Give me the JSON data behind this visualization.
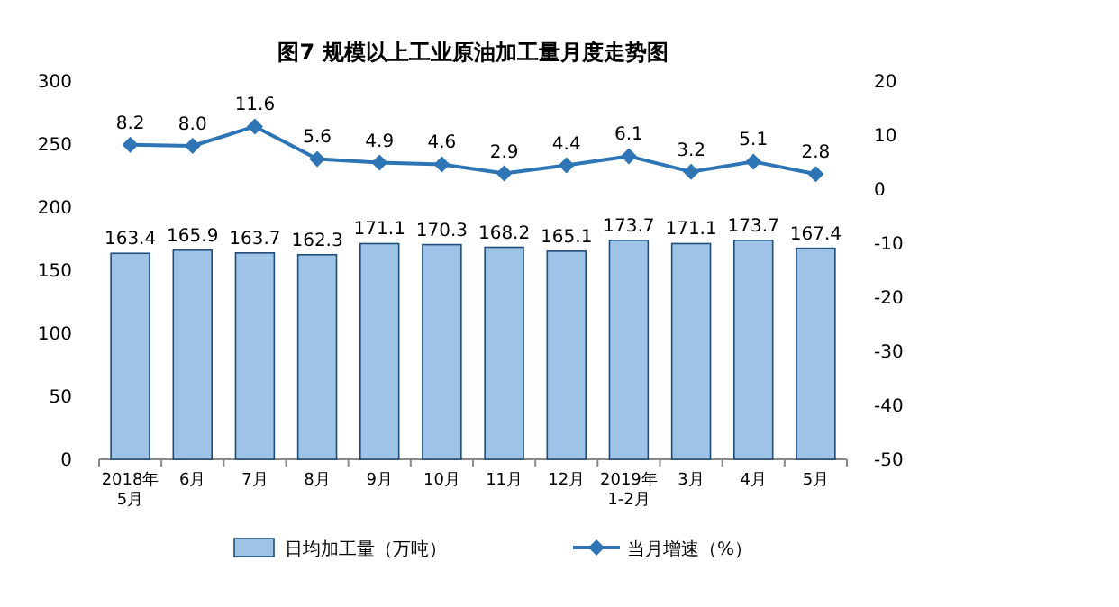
{
  "chart_data": {
    "type": "bar",
    "title": "图7  规模以上工业原油加工量月度走势图",
    "categories": [
      "2018年\n5月",
      "6月",
      "7月",
      "8月",
      "9月",
      "10月",
      "11月",
      "12月",
      "2019年\n1-2月",
      "3月",
      "4月",
      "5月"
    ],
    "series": [
      {
        "name": "日均加工量（万吨）",
        "color": "#9dc3e6",
        "values": [
          163.4,
          165.9,
          163.7,
          162.3,
          171.1,
          170.3,
          168.2,
          165.1,
          173.7,
          171.1,
          173.7,
          167.4
        ],
        "value_labels": [
          "163.4",
          "165.9",
          "163.7",
          "162.3",
          "171.1",
          "170.3",
          "168.2",
          "165.1",
          "173.7",
          "171.1",
          "173.7",
          "167.4"
        ]
      },
      {
        "name": "当月增速（%）",
        "type": "line",
        "axis": "y2",
        "color": "#2e75b6",
        "marker": "diamond",
        "values": [
          8.2,
          8.0,
          11.6,
          5.6,
          4.9,
          4.6,
          2.9,
          4.4,
          6.1,
          3.2,
          5.1,
          2.8
        ],
        "value_labels": [
          "8.2",
          "8.0",
          "11.6",
          "5.6",
          "4.9",
          "4.6",
          "2.9",
          "4.4",
          "6.1",
          "3.2",
          "5.1",
          "2.8"
        ]
      }
    ],
    "ylim": [
      0,
      300
    ],
    "yticks": [
      0,
      50,
      100,
      150,
      200,
      250,
      300
    ],
    "y2lim": [
      -50,
      20
    ],
    "y2ticks": [
      -50,
      -40,
      -30,
      -20,
      -10,
      0,
      10,
      20
    ],
    "grid": false,
    "legend": "bottom"
  }
}
